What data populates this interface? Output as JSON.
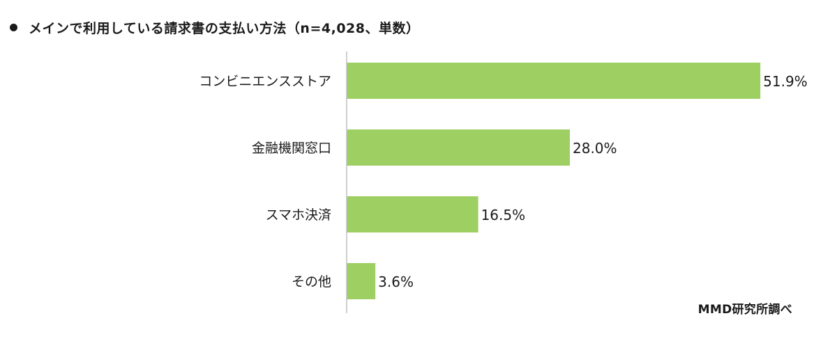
{
  "title": "メインで利用している請求書の支払い方法（n=4,028、単数）",
  "source": "MMD研究所調べ",
  "colors": {
    "bar": "#9dcf63",
    "axis": "#bfbfbf",
    "text": "#1a1a1a"
  },
  "chart_data": {
    "type": "bar",
    "orientation": "horizontal",
    "title": "メインで利用している請求書の支払い方法（n=4,028、単数）",
    "categories": [
      "コンビニエンスストア",
      "金融機関窓口",
      "スマホ決済",
      "その他"
    ],
    "values": [
      51.9,
      28.0,
      16.5,
      3.6
    ],
    "value_labels": [
      "51.9%",
      "28.0%",
      "16.5%",
      "3.6%"
    ],
    "xlim": [
      0,
      52.5
    ],
    "grid": false,
    "legend": "none"
  }
}
